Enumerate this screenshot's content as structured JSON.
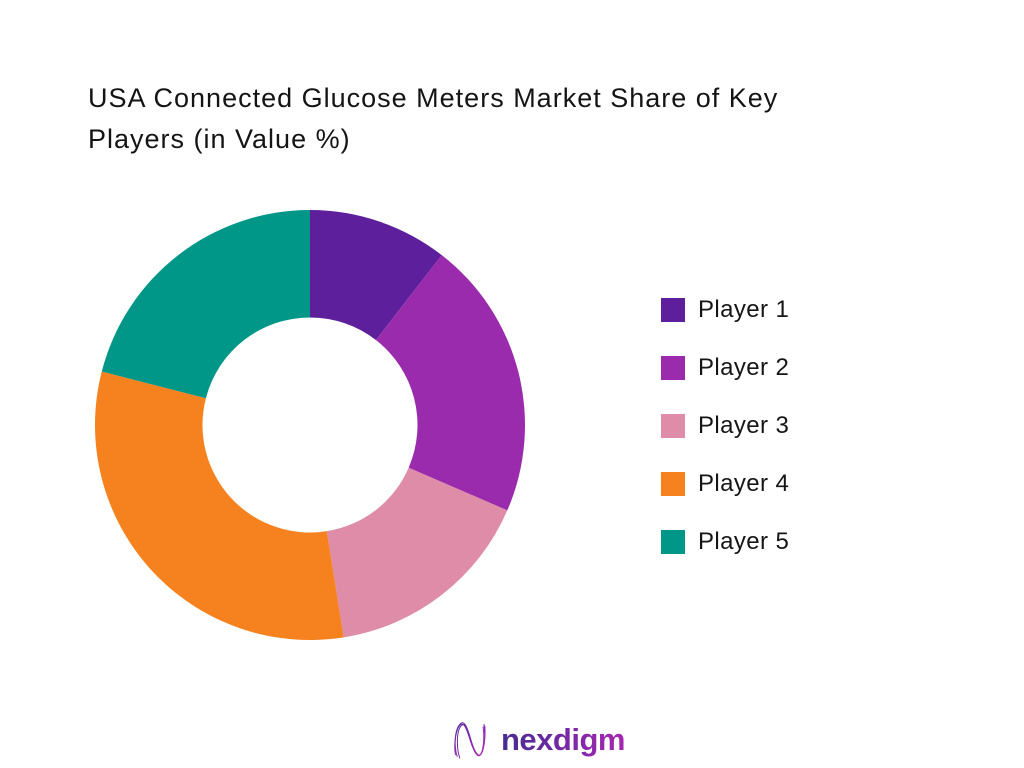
{
  "page": {
    "background": "#ffffff"
  },
  "header": {
    "title_line1": "USA Connected Glucose Meters Market Share of Key",
    "title_line2": "Players (in Value %)"
  },
  "chart_data": {
    "type": "pie",
    "variant": "donut",
    "title": "USA Connected Glucose Meters Market Share of Key Players (in Value %)",
    "unit": "value %",
    "start_angle_deg": 0,
    "direction": "clockwise",
    "inner_radius_ratio": 0.5,
    "legend_position": "right",
    "data_labels": "none",
    "segments": [
      {
        "label": "Player 1",
        "value": 10.5,
        "color": "#5E1F9D"
      },
      {
        "label": "Player 2",
        "value": 21.0,
        "color": "#9A2BAC"
      },
      {
        "label": "Player 3",
        "value": 16.0,
        "color": "#DE8CA8"
      },
      {
        "label": "Player 4",
        "value": 31.5,
        "color": "#F5821F"
      },
      {
        "label": "Player 5",
        "value": 21.0,
        "color": "#009688"
      }
    ]
  },
  "footer": {
    "logo_text": "nexdigm",
    "logo_icon": "nexdigm-n-mark",
    "brand_gradient": {
      "start": "#462D8F",
      "mid": "#7A28A6",
      "end": "#A827B2"
    }
  }
}
